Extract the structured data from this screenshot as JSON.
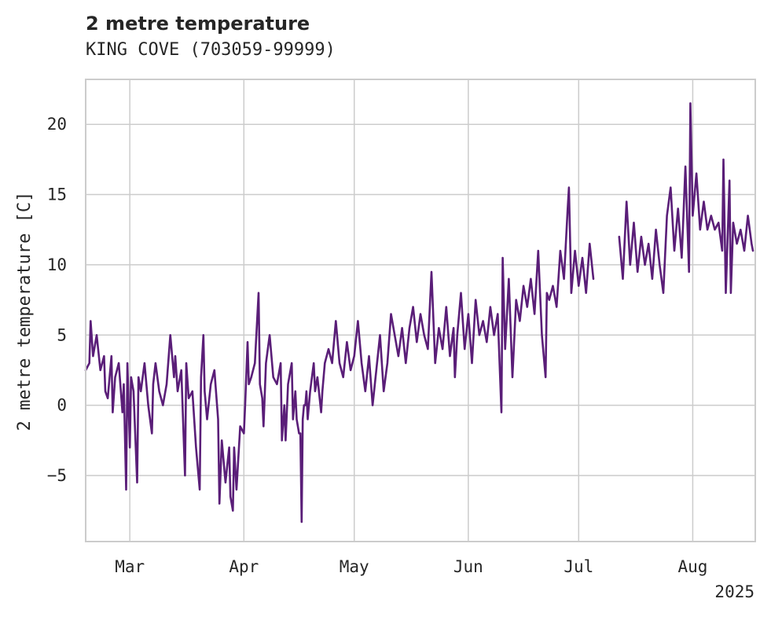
{
  "chart_data": {
    "type": "line",
    "title": "2 metre temperature",
    "subtitle": "KING COVE (703059-99999)",
    "ylabel": "2 metre temperature [C]",
    "xlabel": "",
    "year_label": "2025",
    "x_ticks": [
      {
        "date": "2025-03-01",
        "label": "Mar"
      },
      {
        "date": "2025-04-01",
        "label": "Apr"
      },
      {
        "date": "2025-05-01",
        "label": "May"
      },
      {
        "date": "2025-06-01",
        "label": "Jun"
      },
      {
        "date": "2025-07-01",
        "label": "Jul"
      },
      {
        "date": "2025-08-01",
        "label": "Aug"
      }
    ],
    "y_ticks": [
      {
        "value": 20,
        "label": "20"
      },
      {
        "value": 15,
        "label": "15"
      },
      {
        "value": 10,
        "label": "10"
      },
      {
        "value": 5,
        "label": "5"
      },
      {
        "value": 0,
        "label": "0"
      },
      {
        "value": -5,
        "label": "−5"
      }
    ],
    "xlim": [
      "2025-02-17",
      "2025-08-18"
    ],
    "ylim": [
      -9.7,
      23.2
    ],
    "grid": true,
    "line_color": "#5a1e78",
    "series": [
      {
        "values": [
          [
            "2025-02-17",
            2.5
          ],
          [
            "2025-02-18",
            3.0
          ],
          [
            "2025-02-18",
            6.0
          ],
          [
            "2025-02-19",
            3.5
          ],
          [
            "2025-02-20",
            5.0
          ],
          [
            "2025-02-21",
            2.5
          ],
          [
            "2025-02-22",
            3.5
          ],
          [
            "2025-02-22",
            1.0
          ],
          [
            "2025-02-23",
            0.5
          ],
          [
            "2025-02-24",
            3.5
          ],
          [
            "2025-02-24",
            -0.5
          ],
          [
            "2025-02-25",
            2.0
          ],
          [
            "2025-02-26",
            3.0
          ],
          [
            "2025-02-27",
            -0.5
          ],
          [
            "2025-02-27",
            1.5
          ],
          [
            "2025-02-28",
            -6.0
          ],
          [
            "2025-02-28",
            3.0
          ],
          [
            "2025-03-01",
            -3.0
          ],
          [
            "2025-03-01",
            2.0
          ],
          [
            "2025-03-02",
            1.0
          ],
          [
            "2025-03-03",
            -5.5
          ],
          [
            "2025-03-03",
            2.0
          ],
          [
            "2025-03-04",
            1.0
          ],
          [
            "2025-03-05",
            3.0
          ],
          [
            "2025-03-06",
            0.0
          ],
          [
            "2025-03-07",
            -2.0
          ],
          [
            "2025-03-07",
            1.5
          ],
          [
            "2025-03-08",
            3.0
          ],
          [
            "2025-03-09",
            1.0
          ],
          [
            "2025-03-10",
            0.0
          ],
          [
            "2025-03-11",
            1.5
          ],
          [
            "2025-03-12",
            5.0
          ],
          [
            "2025-03-13",
            2.0
          ],
          [
            "2025-03-13",
            3.5
          ],
          [
            "2025-03-14",
            1.0
          ],
          [
            "2025-03-15",
            2.5
          ],
          [
            "2025-03-16",
            -5.0
          ],
          [
            "2025-03-16",
            3.0
          ],
          [
            "2025-03-17",
            0.5
          ],
          [
            "2025-03-18",
            1.0
          ],
          [
            "2025-03-19",
            -3.0
          ],
          [
            "2025-03-20",
            -6.0
          ],
          [
            "2025-03-20",
            2.0
          ],
          [
            "2025-03-21",
            5.0
          ],
          [
            "2025-03-21",
            1.0
          ],
          [
            "2025-03-22",
            -1.0
          ],
          [
            "2025-03-23",
            1.5
          ],
          [
            "2025-03-24",
            2.5
          ],
          [
            "2025-03-25",
            -1.0
          ],
          [
            "2025-03-25",
            -7.0
          ],
          [
            "2025-03-26",
            -2.5
          ],
          [
            "2025-03-27",
            -5.5
          ],
          [
            "2025-03-28",
            -3.0
          ],
          [
            "2025-03-28",
            -6.5
          ],
          [
            "2025-03-29",
            -7.5
          ],
          [
            "2025-03-29",
            -3.0
          ],
          [
            "2025-03-30",
            -6.0
          ],
          [
            "2025-03-31",
            -1.5
          ],
          [
            "2025-04-01",
            -2.0
          ],
          [
            "2025-04-01",
            0.0
          ],
          [
            "2025-04-02",
            4.5
          ],
          [
            "2025-04-02",
            1.5
          ],
          [
            "2025-04-03",
            2.0
          ],
          [
            "2025-04-04",
            3.0
          ],
          [
            "2025-04-05",
            8.0
          ],
          [
            "2025-04-05",
            1.5
          ],
          [
            "2025-04-06",
            0.5
          ],
          [
            "2025-04-06",
            -1.5
          ],
          [
            "2025-04-07",
            3.0
          ],
          [
            "2025-04-08",
            5.0
          ],
          [
            "2025-04-09",
            2.0
          ],
          [
            "2025-04-10",
            1.5
          ],
          [
            "2025-04-11",
            3.0
          ],
          [
            "2025-04-11",
            -2.5
          ],
          [
            "2025-04-12",
            0.0
          ],
          [
            "2025-04-12",
            -2.5
          ],
          [
            "2025-04-13",
            1.5
          ],
          [
            "2025-04-14",
            3.0
          ],
          [
            "2025-04-14",
            -1.0
          ],
          [
            "2025-04-15",
            1.0
          ],
          [
            "2025-04-15",
            -1.0
          ],
          [
            "2025-04-16",
            -2.0
          ],
          [
            "2025-04-16",
            -2.0
          ],
          [
            "2025-04-16",
            -8.3
          ],
          [
            "2025-04-17",
            -1.0
          ],
          [
            "2025-04-17",
            0.0
          ],
          [
            "2025-04-17",
            0.0
          ],
          [
            "2025-04-18",
            1.0
          ],
          [
            "2025-04-18",
            -1.0
          ],
          [
            "2025-04-19",
            1.0
          ],
          [
            "2025-04-20",
            3.0
          ],
          [
            "2025-04-20",
            1.0
          ],
          [
            "2025-04-21",
            2.0
          ],
          [
            "2025-04-22",
            -0.5
          ],
          [
            "2025-04-22",
            1.0
          ],
          [
            "2025-04-23",
            3.0
          ],
          [
            "2025-04-24",
            4.0
          ],
          [
            "2025-04-25",
            3.0
          ],
          [
            "2025-04-26",
            6.0
          ],
          [
            "2025-04-27",
            3.0
          ],
          [
            "2025-04-28",
            2.0
          ],
          [
            "2025-04-29",
            4.5
          ],
          [
            "2025-04-30",
            2.5
          ],
          [
            "2025-05-01",
            3.5
          ],
          [
            "2025-05-02",
            6.0
          ],
          [
            "2025-05-03",
            3.0
          ],
          [
            "2025-05-04",
            1.0
          ],
          [
            "2025-05-05",
            3.5
          ],
          [
            "2025-05-06",
            0.0
          ],
          [
            "2025-05-07",
            2.5
          ],
          [
            "2025-05-08",
            5.0
          ],
          [
            "2025-05-09",
            1.0
          ],
          [
            "2025-05-10",
            3.0
          ],
          [
            "2025-05-11",
            6.5
          ],
          [
            "2025-05-12",
            5.0
          ],
          [
            "2025-05-13",
            3.5
          ],
          [
            "2025-05-14",
            5.5
          ],
          [
            "2025-05-15",
            3.0
          ],
          [
            "2025-05-16",
            5.5
          ],
          [
            "2025-05-17",
            7.0
          ],
          [
            "2025-05-18",
            4.5
          ],
          [
            "2025-05-19",
            6.5
          ],
          [
            "2025-05-20",
            5.0
          ],
          [
            "2025-05-21",
            4.0
          ],
          [
            "2025-05-22",
            9.5
          ],
          [
            "2025-05-23",
            3.0
          ],
          [
            "2025-05-24",
            5.5
          ],
          [
            "2025-05-25",
            4.0
          ],
          [
            "2025-05-26",
            7.0
          ],
          [
            "2025-05-27",
            3.5
          ],
          [
            "2025-05-28",
            5.5
          ],
          [
            "2025-05-28",
            2.0
          ],
          [
            "2025-05-29",
            5.0
          ],
          [
            "2025-05-30",
            8.0
          ],
          [
            "2025-05-31",
            4.0
          ],
          [
            "2025-06-01",
            6.5
          ],
          [
            "2025-06-02",
            3.0
          ],
          [
            "2025-06-03",
            7.5
          ],
          [
            "2025-06-04",
            5.0
          ],
          [
            "2025-06-05",
            6.0
          ],
          [
            "2025-06-06",
            4.5
          ],
          [
            "2025-06-07",
            7.0
          ],
          [
            "2025-06-08",
            5.0
          ],
          [
            "2025-06-09",
            6.5
          ],
          [
            "2025-06-10",
            -0.5
          ],
          [
            "2025-06-10",
            10.5
          ],
          [
            "2025-06-11",
            4.0
          ],
          [
            "2025-06-12",
            9.0
          ],
          [
            "2025-06-13",
            2.0
          ],
          [
            "2025-06-14",
            7.5
          ],
          [
            "2025-06-15",
            6.0
          ],
          [
            "2025-06-16",
            8.5
          ],
          [
            "2025-06-17",
            7.0
          ],
          [
            "2025-06-18",
            9.0
          ],
          [
            "2025-06-19",
            6.5
          ],
          [
            "2025-06-20",
            11.0
          ],
          [
            "2025-06-21",
            5.0
          ],
          [
            "2025-06-22",
            2.0
          ],
          [
            "2025-06-22",
            8.0
          ],
          [
            "2025-06-23",
            7.5
          ],
          [
            "2025-06-24",
            8.5
          ],
          [
            "2025-06-25",
            7.0
          ],
          [
            "2025-06-26",
            11.0
          ],
          [
            "2025-06-27",
            9.0
          ],
          [
            "2025-06-28",
            14.0
          ],
          [
            "2025-06-28",
            15.5
          ],
          [
            "2025-06-29",
            8.0
          ],
          [
            "2025-06-30",
            11.0
          ],
          [
            "2025-07-01",
            8.5
          ],
          [
            "2025-07-02",
            10.5
          ],
          [
            "2025-07-03",
            8.0
          ],
          [
            "2025-07-04",
            11.5
          ],
          [
            "2025-07-05",
            9.0
          ],
          null,
          [
            "2025-07-12",
            12.0
          ],
          [
            "2025-07-13",
            9.0
          ],
          [
            "2025-07-14",
            14.5
          ],
          [
            "2025-07-15",
            10.0
          ],
          [
            "2025-07-16",
            13.0
          ],
          [
            "2025-07-17",
            9.5
          ],
          [
            "2025-07-18",
            12.0
          ],
          [
            "2025-07-19",
            10.0
          ],
          [
            "2025-07-20",
            11.5
          ],
          [
            "2025-07-21",
            9.0
          ],
          [
            "2025-07-22",
            12.5
          ],
          [
            "2025-07-23",
            10.0
          ],
          [
            "2025-07-24",
            8.0
          ],
          [
            "2025-07-25",
            13.5
          ],
          [
            "2025-07-26",
            15.5
          ],
          [
            "2025-07-27",
            11.0
          ],
          [
            "2025-07-28",
            14.0
          ],
          [
            "2025-07-29",
            10.5
          ],
          [
            "2025-07-30",
            17.0
          ],
          [
            "2025-07-31",
            9.5
          ],
          [
            "2025-07-31",
            21.5
          ],
          [
            "2025-08-01",
            13.5
          ],
          [
            "2025-08-02",
            16.5
          ],
          [
            "2025-08-03",
            12.5
          ],
          [
            "2025-08-04",
            14.5
          ],
          [
            "2025-08-05",
            12.5
          ],
          [
            "2025-08-06",
            13.5
          ],
          [
            "2025-08-07",
            12.5
          ],
          [
            "2025-08-08",
            13.0
          ],
          [
            "2025-08-09",
            11.0
          ],
          [
            "2025-08-09",
            17.5
          ],
          [
            "2025-08-10",
            8.0
          ],
          [
            "2025-08-11",
            16.0
          ],
          [
            "2025-08-11",
            8.0
          ],
          [
            "2025-08-12",
            13.0
          ],
          [
            "2025-08-13",
            11.5
          ],
          [
            "2025-08-14",
            12.5
          ],
          [
            "2025-08-15",
            11.0
          ],
          [
            "2025-08-16",
            13.5
          ],
          [
            "2025-08-17",
            11.5
          ],
          [
            "2025-08-17",
            11.0
          ]
        ]
      }
    ]
  }
}
